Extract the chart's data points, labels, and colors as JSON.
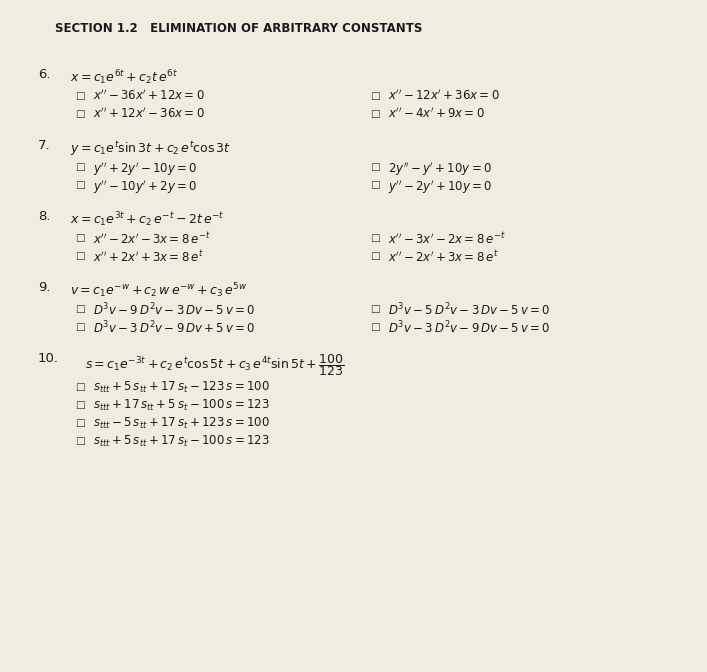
{
  "bg_color": "#f0ede0",
  "text_color": "#1a1a1a",
  "figsize": [
    7.07,
    6.72
  ],
  "dpi": 100,
  "title": "SECTION 1.2   ELIMINATION OF ARBITRARY CONSTANTS",
  "problems": [
    {
      "num": "6.",
      "given": "$x = c_1 e^{6t} + c_2 t\\, e^{6t}$",
      "choices": [
        [
          "$x'' - 36x' + 12x = 0$",
          "$x'' - 12x' + 36x = 0$"
        ],
        [
          "$x'' + 12x' - 36x = 0$",
          "$x'' - 4x' + 9x = 0$"
        ]
      ]
    },
    {
      "num": "7.",
      "given": "$y = c_1 e^t \\sin 3t + c_2\\, e^t \\cos 3t$",
      "choices": [
        [
          "$y'' + 2y' - 10y = 0$",
          "$2y'' - y' + 10y = 0$"
        ],
        [
          "$y'' - 10y' + 2y = 0$",
          "$y'' - 2y' + 10y = 0$"
        ]
      ]
    },
    {
      "num": "8.",
      "given": "$x = c_1 e^{3t} + c_2\\, e^{-t} - 2t\\, e^{-t}$",
      "choices": [
        [
          "$x'' - 2x' - 3x = 8\\,e^{-t}$",
          "$x'' - 3x' - 2x = 8\\,e^{-t}$"
        ],
        [
          "$x'' + 2x' + 3x = 8\\,e^{t}$",
          "$x'' - 2x' + 3x = 8\\,e^{t}$"
        ]
      ]
    },
    {
      "num": "9.",
      "given": "$v = c_1 e^{-w} + c_2\\, w\\, e^{-w} + c_3\\, e^{5w}$",
      "choices": [
        [
          "$D^3v - 9\\,D^2v - 3\\,Dv - 5\\,v = 0$",
          "$D^3v - 5\\,D^2v - 3\\,Dv - 5\\,v = 0$"
        ],
        [
          "$D^3v - 3\\,D^2v - 9\\,Dv + 5\\,v = 0$",
          "$D^3v - 3\\,D^2v - 9\\,Dv - 5\\,v = 0$"
        ]
      ]
    }
  ],
  "prob10": {
    "num": "10.",
    "given": "$s = c_1 e^{-3t} + c_2\\, e^{t} \\cos 5t + c_3\\, e^{4t} \\sin 5t + \\dfrac{100}{123}$",
    "choices": [
      "$s_{ttt} + 5\\,s_{tt} + 17\\,s_t - 123\\,s = 100$",
      "$s_{ttt} + 17\\,s_{tt} + 5\\,s_t - 100\\,s = 123$",
      "$s_{ttt} - 5\\,s_{tt} + 17\\,s_t + 123\\,s = 100$",
      "$s_{ttt} + 5\\,s_{tt} + 17\\,s_t - 100\\,s = 123$"
    ]
  }
}
